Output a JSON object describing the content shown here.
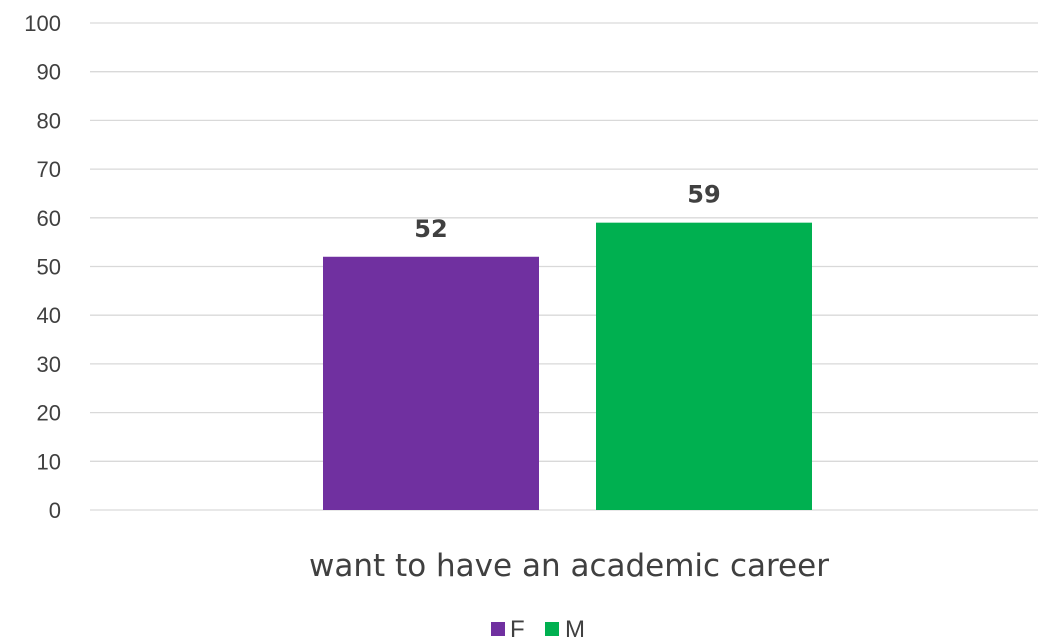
{
  "chart_data": {
    "type": "bar",
    "categories": [
      "want to have an academic career"
    ],
    "series": [
      {
        "name": "F",
        "values": [
          52
        ],
        "color": "#7030a0"
      },
      {
        "name": "M",
        "values": [
          59
        ],
        "color": "#00b050"
      }
    ],
    "data_labels": [
      "52",
      "59"
    ],
    "y_ticks": [
      "0",
      "10",
      "20",
      "30",
      "40",
      "50",
      "60",
      "70",
      "80",
      "90",
      "100"
    ],
    "ylim": [
      0,
      100
    ],
    "title": "",
    "xlabel": "",
    "ylabel": "",
    "grid": true,
    "legend_position": "bottom"
  }
}
